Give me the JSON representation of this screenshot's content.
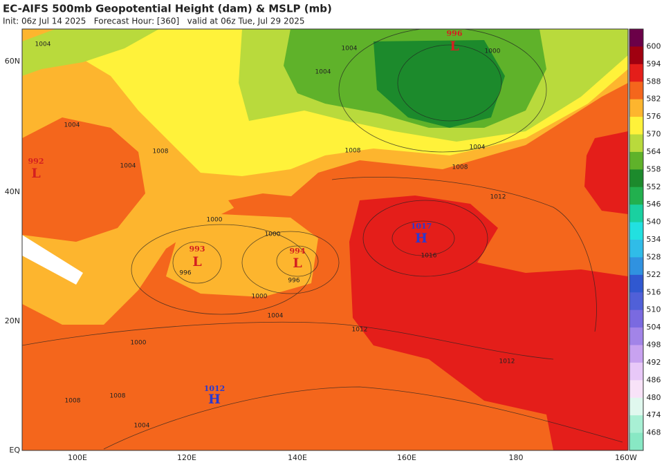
{
  "header": {
    "title": "EC-AIFS 500mb Geopotential Height (dam) & MSLP (mb)",
    "subtitle": "Init: 06z Jul 14 2025   Forecast Hour: [360]   valid at 06z Tue, Jul 29 2025"
  },
  "map": {
    "lat_labels": [
      "60N",
      "40N",
      "20N",
      "EQ"
    ],
    "lon_labels": [
      "100E",
      "120E",
      "140E",
      "160E",
      "180",
      "160W"
    ],
    "centers": [
      {
        "kind": "L",
        "value": "996",
        "color": "#d42020"
      },
      {
        "kind": "L",
        "value": "992",
        "color": "#d42020"
      },
      {
        "kind": "L",
        "value": "993",
        "color": "#d42020"
      },
      {
        "kind": "L",
        "value": "994",
        "color": "#d42020"
      },
      {
        "kind": "H",
        "value": "1017",
        "color": "#2a3ad0"
      },
      {
        "kind": "H",
        "value": "1012",
        "color": "#2a3ad0"
      }
    ],
    "contour_labels": [
      "1004",
      "1004",
      "1000",
      "1004",
      "1004",
      "1008",
      "1008",
      "1008",
      "1004",
      "1000",
      "1000",
      "996",
      "996",
      "1000",
      "1004",
      "1000",
      "1012",
      "1016",
      "1012",
      "1012",
      "1008",
      "1008",
      "1004",
      "1004"
    ]
  },
  "colorbar": {
    "levels": [
      600,
      594,
      588,
      582,
      576,
      570,
      564,
      558,
      552,
      546,
      540,
      534,
      528,
      522,
      516,
      510,
      504,
      498,
      492,
      486,
      480,
      474,
      468
    ],
    "colors": [
      "#6b0048",
      "#a00010",
      "#e41e1a",
      "#f4661c",
      "#fdb52e",
      "#fff23a",
      "#b9da3c",
      "#5fb22a",
      "#1c8a2c",
      "#22b04e",
      "#1ad0a0",
      "#22e0e0",
      "#30bce8",
      "#3092e0",
      "#3058d0",
      "#5060d8",
      "#7a6ae0",
      "#a284e8",
      "#c8a2f0",
      "#e8c8f8",
      "#f8e2f8",
      "#e0f8ee",
      "#a8f0d4",
      "#88e8c4"
    ]
  }
}
